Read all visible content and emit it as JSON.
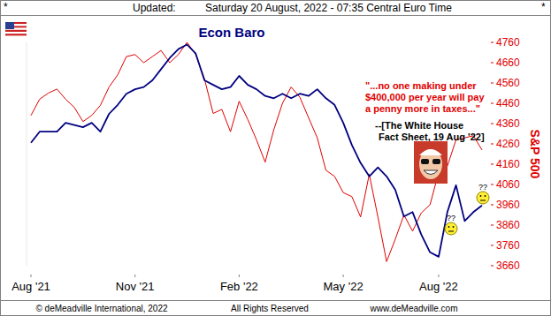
{
  "chart_data": {
    "type": "line",
    "title": "Econ Baro",
    "y2_label": "S&P 500",
    "header": {
      "left": "*",
      "updated": "Updated:",
      "date": "Saturday 20 August, 2022 - 07:35 Central Euro Time",
      "right": "*"
    },
    "footer": [
      "© deMeadville International, 2022",
      "All Rights Reserved",
      "www.deMeadville.com"
    ],
    "quote": [
      "\"...no one making under",
      "$400,000 per year will pay",
      "a penny more in taxes...\""
    ],
    "source": [
      "--[The White House",
      "Fact Sheet, 19 Aug '22]"
    ],
    "annotations": [
      "??",
      "??"
    ],
    "categories": [
      "Aug '21",
      null,
      null,
      null,
      null,
      null,
      null,
      null,
      null,
      null,
      null,
      null,
      "Nov '21",
      null,
      null,
      null,
      null,
      null,
      null,
      null,
      null,
      null,
      null,
      null,
      "Feb '22",
      null,
      null,
      null,
      null,
      null,
      null,
      null,
      null,
      null,
      null,
      null,
      "May '22",
      null,
      null,
      null,
      null,
      null,
      null,
      null,
      null,
      null,
      null,
      "Aug '22",
      null,
      null,
      null,
      null,
      null
    ],
    "ylim": [
      0,
      100
    ],
    "yticks": [],
    "y2lim": [
      3660,
      4760
    ],
    "y2ticks": [
      3660,
      3760,
      3860,
      3960,
      4060,
      4160,
      4260,
      4360,
      4460,
      4560,
      4660,
      4760
    ],
    "grid": false,
    "series": [
      {
        "name": "Econ Baro",
        "color": "#000080",
        "values": [
          55,
          60,
          60,
          60,
          64,
          63,
          62,
          64,
          60,
          68,
          72,
          77,
          79,
          80,
          83,
          88,
          93,
          97,
          99,
          95,
          83,
          81,
          79,
          80,
          85,
          81,
          79,
          76,
          75,
          77,
          75,
          77,
          76,
          79,
          75,
          72,
          64,
          54,
          46,
          40,
          44,
          40,
          34,
          22,
          24,
          14,
          6,
          4,
          24,
          36,
          20,
          24,
          27
        ]
      },
      {
        "name": "S&P 500",
        "color": "#e00000",
        "axis": "y2",
        "values": [
          4400,
          4480,
          4510,
          4530,
          4480,
          4440,
          4370,
          4400,
          4450,
          4540,
          4600,
          4690,
          4700,
          4660,
          4690,
          4720,
          4660,
          4700,
          4760,
          4700,
          4580,
          4410,
          4430,
          4320,
          4470,
          4380,
          4280,
          4170,
          4330,
          4460,
          4540,
          4490,
          4390,
          4290,
          4130,
          4100,
          4020,
          4000,
          3900,
          4110,
          3900,
          3680,
          3790,
          3910,
          3830,
          3920,
          3960,
          4120,
          4150,
          4280,
          4290,
          4300,
          4230
        ]
      }
    ]
  }
}
